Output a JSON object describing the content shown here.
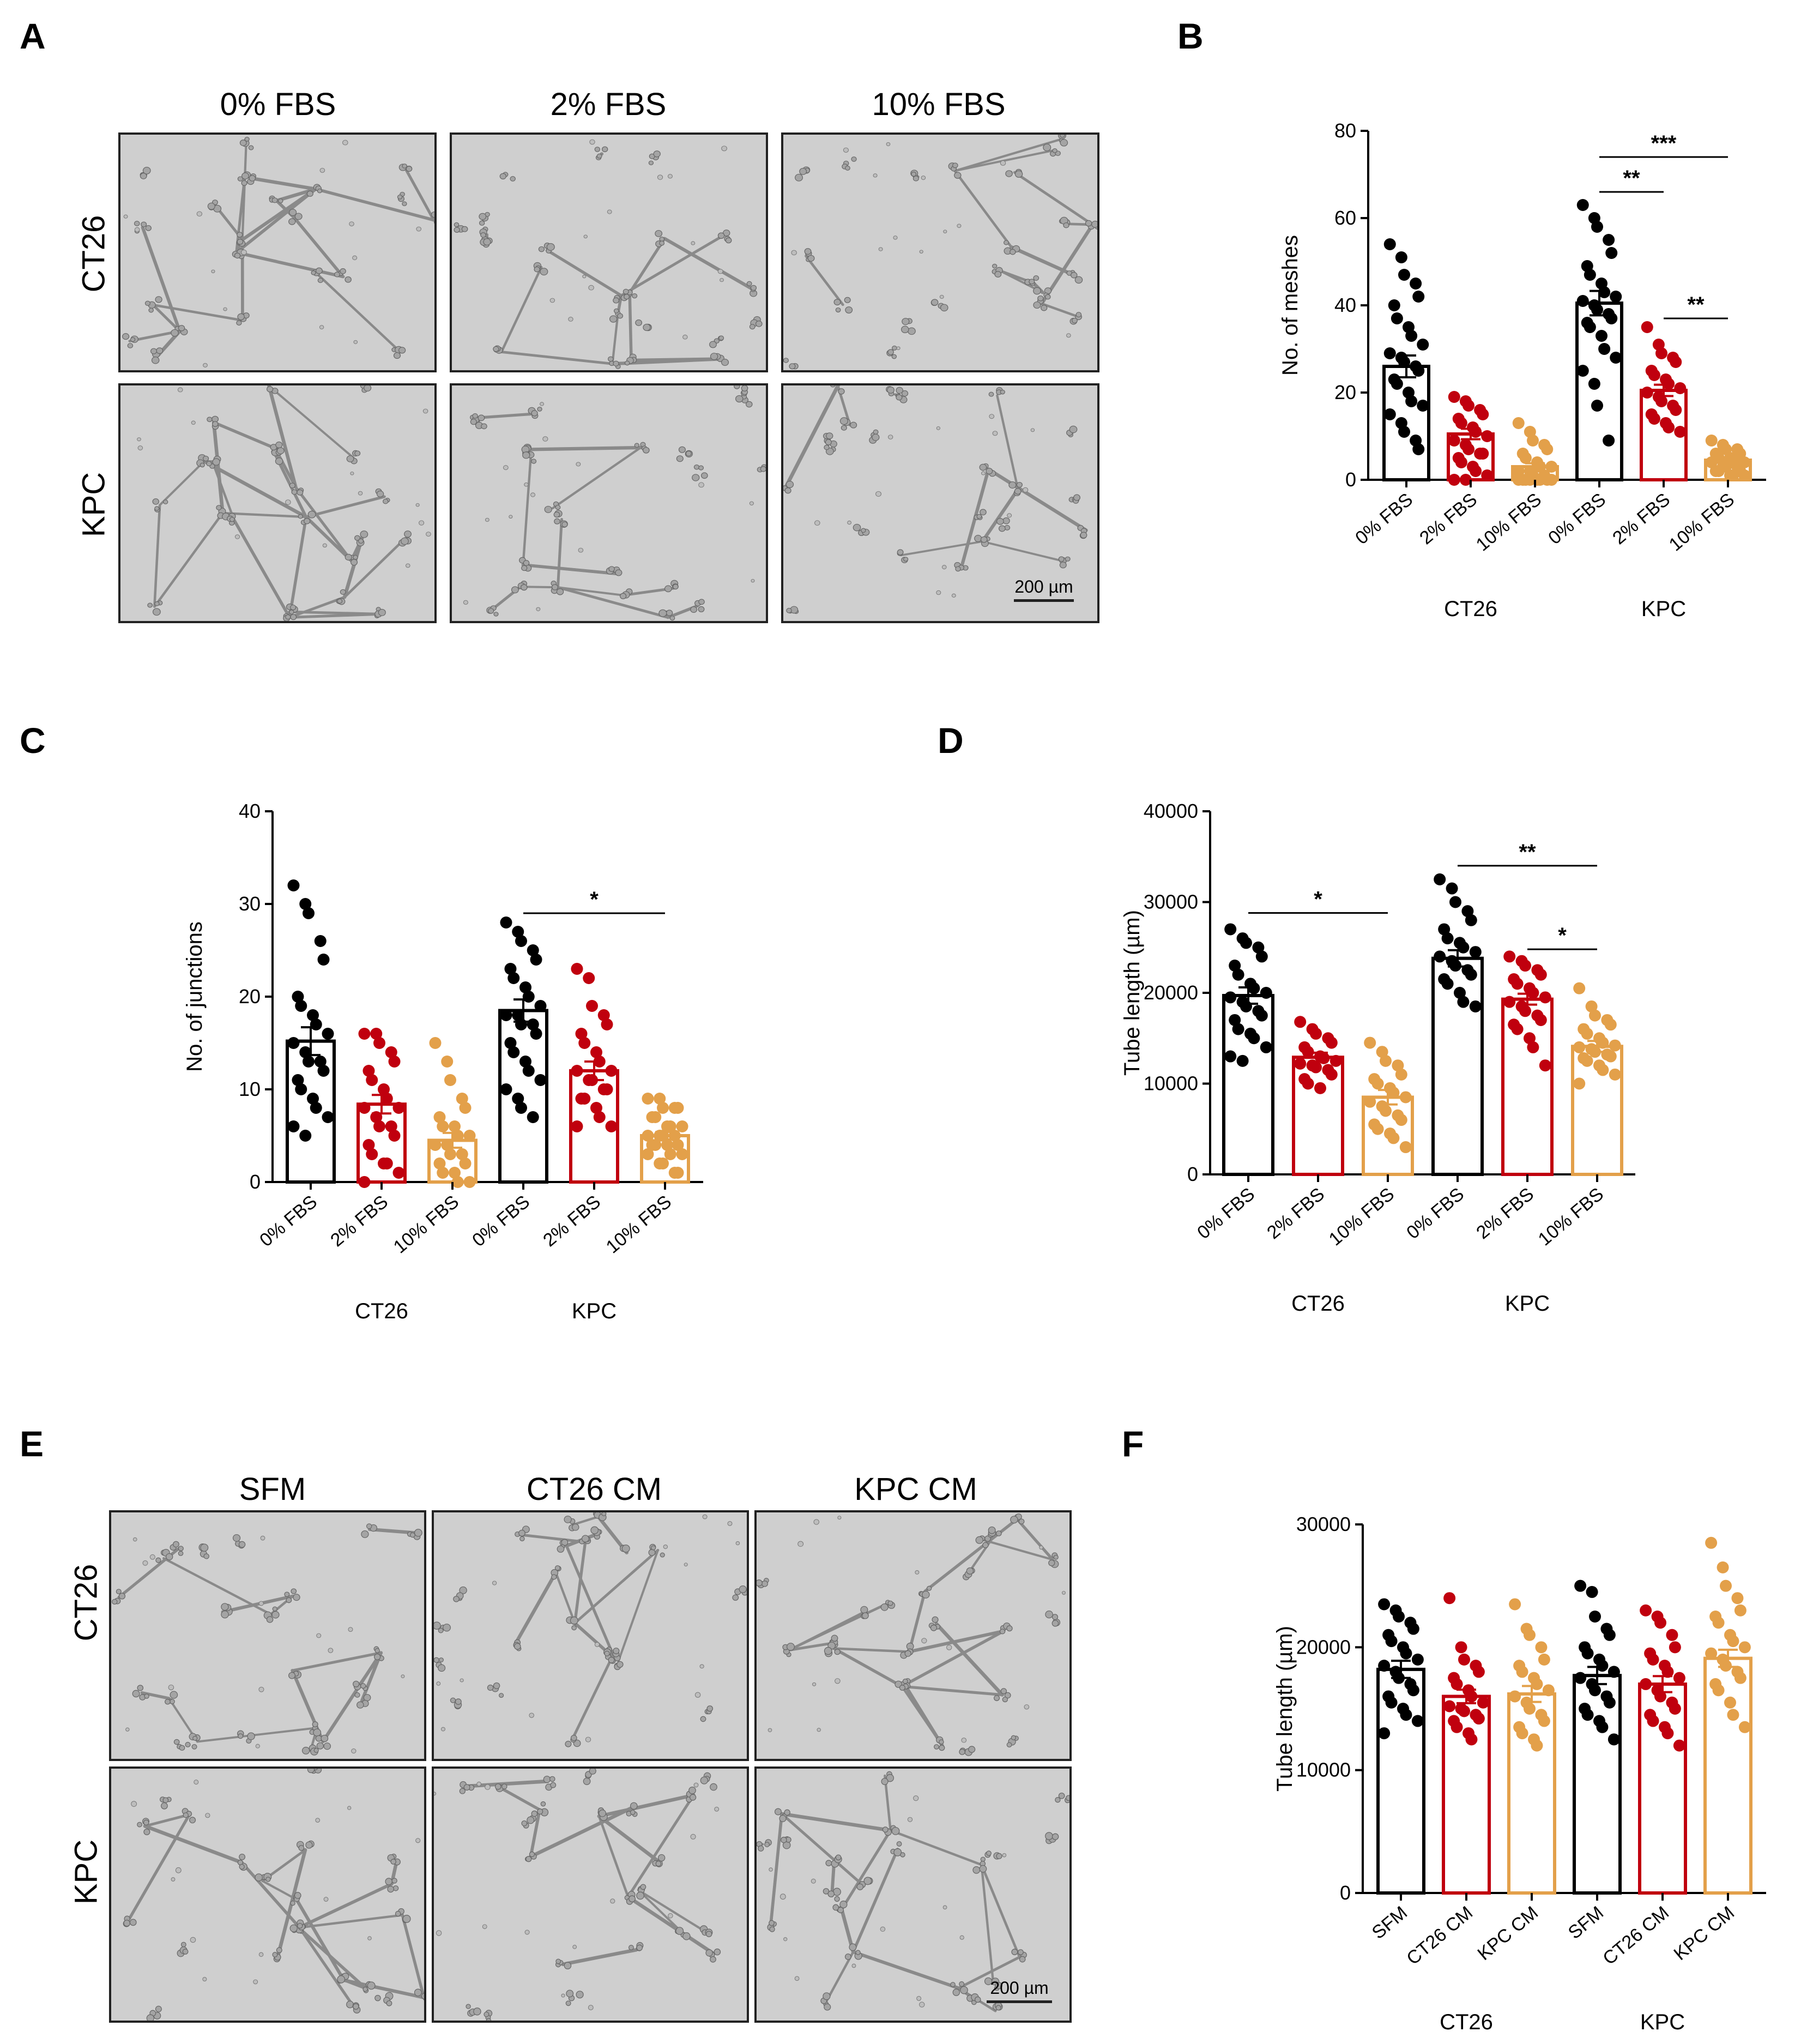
{
  "panels": {
    "A": {
      "letter": "A",
      "columns": [
        "0% FBS",
        "2% FBS",
        "10% FBS"
      ],
      "rows": [
        "CT26",
        "KPC"
      ],
      "scale_bar": "200 µm"
    },
    "E": {
      "letter": "E",
      "columns": [
        "SFM",
        "CT26 CM",
        "KPC CM"
      ],
      "rows": [
        "CT26",
        "KPC"
      ],
      "scale_bar": "200 µm"
    }
  },
  "colors": {
    "black": "#000000",
    "red": "#c0000e",
    "orange": "#e3a04a"
  },
  "chart_data": [
    {
      "id": "B",
      "letter": "B",
      "type": "bar",
      "ylabel": "No. of meshes",
      "ylim": [
        0,
        80
      ],
      "yticks": [
        0,
        20,
        40,
        60,
        80
      ],
      "categories": [
        "0% FBS",
        "2% FBS",
        "10% FBS",
        "0% FBS",
        "2% FBS",
        "10% FBS"
      ],
      "groups": [
        {
          "label": "CT26",
          "span": [
            0,
            2
          ]
        },
        {
          "label": "KPC",
          "span": [
            3,
            5
          ]
        }
      ],
      "series_colors": [
        "#000000",
        "#c0000e",
        "#e3a04a",
        "#000000",
        "#c0000e",
        "#e3a04a"
      ],
      "values": [
        26,
        10.5,
        3,
        40.5,
        20.5,
        4.5
      ],
      "sem": [
        2.5,
        1.2,
        0.8,
        2.8,
        1.3,
        0.6
      ],
      "points": [
        [
          54,
          51,
          47,
          45,
          42,
          40,
          37,
          35,
          33,
          31,
          29,
          28,
          27,
          26,
          25,
          23,
          22,
          20,
          18,
          17,
          15,
          13,
          11,
          9,
          7
        ],
        [
          19,
          18,
          17,
          16,
          15,
          14,
          13,
          12,
          11,
          10,
          9,
          8,
          7,
          6,
          6,
          5,
          4,
          3,
          2,
          1,
          0,
          0
        ],
        [
          13,
          11,
          9,
          8,
          7,
          6,
          5,
          4,
          3,
          3,
          2,
          2,
          1,
          1,
          0,
          0,
          0,
          0,
          0,
          0,
          0,
          0
        ],
        [
          63,
          60,
          58,
          55,
          52,
          49,
          47,
          45,
          43,
          42,
          41,
          40,
          39,
          38,
          37,
          36,
          35,
          33,
          30,
          28,
          25,
          22,
          17,
          9
        ],
        [
          35,
          31,
          29,
          28,
          27,
          25,
          24,
          23,
          22,
          21,
          20,
          19,
          18,
          17,
          16,
          15,
          14,
          13,
          12,
          11
        ],
        [
          9,
          8,
          7,
          7,
          6,
          6,
          5,
          5,
          4,
          4,
          4,
          3,
          3,
          3,
          2,
          2,
          2,
          1,
          1,
          1
        ]
      ],
      "significance": [
        {
          "from": 3,
          "to": 5,
          "label": "***",
          "y": 74
        },
        {
          "from": 3,
          "to": 4,
          "label": "**",
          "y": 66
        },
        {
          "from": 4,
          "to": 5,
          "label": "**",
          "y": 37
        }
      ]
    },
    {
      "id": "C",
      "letter": "C",
      "type": "bar",
      "ylabel": "No. of junctions",
      "ylim": [
        0,
        40
      ],
      "yticks": [
        0,
        10,
        20,
        30,
        40
      ],
      "categories": [
        "0% FBS",
        "2% FBS",
        "10% FBS",
        "0% FBS",
        "2% FBS",
        "10% FBS"
      ],
      "groups": [
        {
          "label": "CT26",
          "span": [
            0,
            2
          ]
        },
        {
          "label": "KPC",
          "span": [
            3,
            5
          ]
        }
      ],
      "series_colors": [
        "#000000",
        "#c0000e",
        "#e3a04a",
        "#000000",
        "#c0000e",
        "#e3a04a"
      ],
      "values": [
        15.2,
        8.4,
        4.5,
        18.5,
        12,
        5
      ],
      "sem": [
        1.5,
        1.0,
        0.8,
        1.2,
        1.0,
        0.4
      ],
      "points": [
        [
          32,
          30,
          29,
          26,
          24,
          20,
          19,
          18,
          17,
          16,
          15,
          14,
          13,
          13,
          12,
          11,
          10,
          9,
          8,
          7,
          6,
          5
        ],
        [
          16,
          16,
          15,
          14,
          13,
          12,
          11,
          10,
          9,
          8,
          8,
          7,
          6,
          6,
          5,
          4,
          3,
          2,
          2,
          1,
          0
        ],
        [
          15,
          13,
          11,
          9,
          8,
          7,
          6,
          6,
          5,
          5,
          4,
          4,
          3,
          3,
          2,
          2,
          1,
          1,
          0,
          0
        ],
        [
          28,
          27,
          26,
          25,
          24,
          23,
          22,
          21,
          20,
          19,
          18,
          18,
          17,
          17,
          16,
          15,
          14,
          13,
          12,
          11,
          10,
          9,
          8,
          7
        ],
        [
          23,
          22,
          19,
          18,
          17,
          16,
          15,
          14,
          13,
          12,
          12,
          11,
          11,
          10,
          10,
          9,
          9,
          8,
          7,
          6,
          6
        ],
        [
          9,
          9,
          8,
          8,
          8,
          7,
          7,
          6,
          6,
          6,
          5,
          5,
          5,
          5,
          4,
          4,
          4,
          4,
          3,
          3,
          3,
          2,
          2,
          1,
          1
        ]
      ],
      "significance": [
        {
          "from": 3,
          "to": 5,
          "label": "*",
          "y": 29
        }
      ]
    },
    {
      "id": "D",
      "letter": "D",
      "type": "bar",
      "ylabel": "Tube length (µm)",
      "ylim": [
        0,
        40000
      ],
      "yticks": [
        0,
        10000,
        20000,
        30000,
        40000
      ],
      "categories": [
        "0% FBS",
        "2% FBS",
        "10% FBS",
        "0% FBS",
        "2% FBS",
        "10% FBS"
      ],
      "groups": [
        {
          "label": "CT26",
          "span": [
            0,
            2
          ]
        },
        {
          "label": "KPC",
          "span": [
            3,
            5
          ]
        }
      ],
      "series_colors": [
        "#000000",
        "#c0000e",
        "#e3a04a",
        "#000000",
        "#c0000e",
        "#e3a04a"
      ],
      "values": [
        19700,
        12900,
        8500,
        23800,
        19300,
        14100
      ],
      "sem": [
        900,
        500,
        800,
        900,
        600,
        600
      ],
      "points": [
        [
          27000,
          26000,
          25500,
          25000,
          24000,
          23000,
          22000,
          21000,
          20500,
          20000,
          19500,
          19000,
          18500,
          18000,
          17500,
          17000,
          16000,
          15500,
          15000,
          14000,
          13000,
          12500
        ],
        [
          16800,
          16000,
          15500,
          15000,
          14500,
          14000,
          13500,
          13000,
          12800,
          12500,
          12200,
          12000,
          11800,
          11500,
          11000,
          10500,
          10000,
          9500
        ],
        [
          14500,
          13500,
          12500,
          12000,
          11000,
          10500,
          10000,
          9500,
          9000,
          8500,
          8000,
          7500,
          7000,
          6500,
          6000,
          5500,
          5000,
          4500,
          4000,
          3000
        ],
        [
          32500,
          31500,
          30000,
          29000,
          28000,
          27000,
          26000,
          25500,
          25000,
          24500,
          24000,
          23500,
          23000,
          22500,
          22000,
          21500,
          21000,
          20000,
          19000,
          18500
        ],
        [
          24000,
          23500,
          23000,
          22500,
          22000,
          21500,
          21000,
          20500,
          20000,
          19500,
          19000,
          18500,
          18000,
          17500,
          17000,
          16500,
          16000,
          15000,
          14000,
          12000
        ],
        [
          20500,
          18500,
          17500,
          17000,
          16500,
          16000,
          15500,
          15000,
          14500,
          14200,
          14000,
          13800,
          13500,
          13200,
          13000,
          12800,
          12500,
          12000,
          11500,
          11000,
          10000
        ]
      ],
      "significance": [
        {
          "from": 0,
          "to": 2,
          "label": "*",
          "y": 28800
        },
        {
          "from": 3,
          "to": 5,
          "label": "**",
          "y": 34000
        },
        {
          "from": 4,
          "to": 5,
          "label": "*",
          "y": 24800
        }
      ]
    },
    {
      "id": "F",
      "letter": "F",
      "type": "bar",
      "ylabel": "Tube length (µm)",
      "ylim": [
        0,
        30000
      ],
      "yticks": [
        0,
        10000,
        20000,
        30000
      ],
      "categories": [
        "SFM",
        "CT26 CM",
        "KPC CM",
        "SFM",
        "CT26 CM",
        "KPC CM"
      ],
      "groups": [
        {
          "label": "CT26",
          "span": [
            0,
            2
          ]
        },
        {
          "label": "KPC",
          "span": [
            3,
            5
          ]
        }
      ],
      "series_colors": [
        "#000000",
        "#c0000e",
        "#e3a04a",
        "#000000",
        "#c0000e",
        "#e3a04a"
      ],
      "values": [
        18200,
        16000,
        16200,
        17700,
        17000,
        19100
      ],
      "sem": [
        700,
        550,
        650,
        700,
        650,
        700
      ],
      "points": [
        [
          23500,
          23000,
          22500,
          22000,
          21500,
          21000,
          20500,
          20000,
          19500,
          19000,
          18500,
          18000,
          17500,
          17000,
          16500,
          16000,
          15500,
          15000,
          14500,
          14000,
          13000
        ],
        [
          24000,
          20000,
          19000,
          18500,
          18000,
          17500,
          17000,
          16500,
          16000,
          15500,
          15200,
          15000,
          14800,
          14500,
          14200,
          14000,
          13500,
          13000,
          12500
        ],
        [
          23500,
          21500,
          21000,
          20000,
          19000,
          18500,
          18000,
          17500,
          17000,
          16500,
          16000,
          15500,
          15000,
          14500,
          14000,
          13500,
          13000,
          12500,
          12000
        ],
        [
          25000,
          24500,
          22500,
          21500,
          21000,
          20000,
          19500,
          19000,
          18500,
          18000,
          17500,
          17000,
          16500,
          16000,
          15500,
          15000,
          14500,
          14000,
          13500,
          12500
        ],
        [
          23000,
          22500,
          22000,
          21000,
          20000,
          19500,
          19000,
          18500,
          18000,
          17500,
          17000,
          16500,
          16000,
          15500,
          15000,
          14500,
          14000,
          13500,
          13000,
          12000
        ],
        [
          28500,
          26500,
          25000,
          24000,
          23000,
          22500,
          22000,
          21000,
          20500,
          20000,
          19500,
          19000,
          18500,
          18000,
          17500,
          17000,
          16500,
          15500,
          14500,
          13500
        ]
      ],
      "significance": []
    }
  ]
}
